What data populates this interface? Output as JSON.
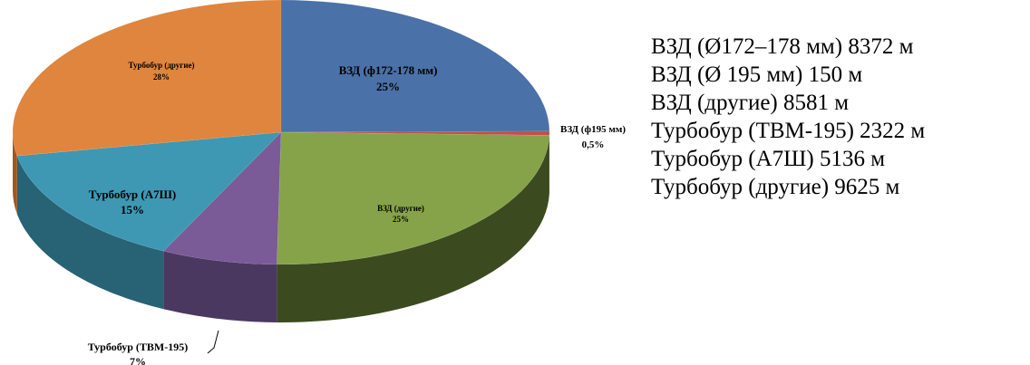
{
  "chart_data": {
    "type": "pie",
    "style": "3d",
    "slices": [
      {
        "label": "ВЗД (ф172-178 мм)",
        "percent_label": "25%",
        "value": 25,
        "color": "#4a71a8",
        "side_color": "#2f4c75"
      },
      {
        "label": "ВЗД (ф195 мм)",
        "percent_label": "0,5%",
        "value": 0.5,
        "color": "#c0504d",
        "side_color": "#8a3431"
      },
      {
        "label": "ВЗД (другие)",
        "percent_label": "25%",
        "value": 25,
        "color": "#86a34a",
        "side_color": "#3c4a1f"
      },
      {
        "label": "Турбобур (ТВМ-195)",
        "percent_label": "7%",
        "value": 7,
        "color": "#7a5a97",
        "side_color": "#4a3860"
      },
      {
        "label": "Турбобур (А7Ш)",
        "percent_label": "15%",
        "value": 15,
        "color": "#3e98b3",
        "side_color": "#276275"
      },
      {
        "label": "Турбобур (другие)",
        "percent_label": "28%",
        "value": 28,
        "color": "#e0853d",
        "side_color": "#a0581f"
      }
    ]
  },
  "legend": {
    "lines": [
      "ВЗД (Ø172–178 мм) 8372 м",
      "ВЗД (Ø 195 мм) 150 м",
      "ВЗД (другие) 8581 м",
      "Турбобур (ТВМ-195) 2322 м",
      "Турбобур (А7Ш) 5136 м",
      "Турбобур (другие) 9625 м"
    ]
  }
}
